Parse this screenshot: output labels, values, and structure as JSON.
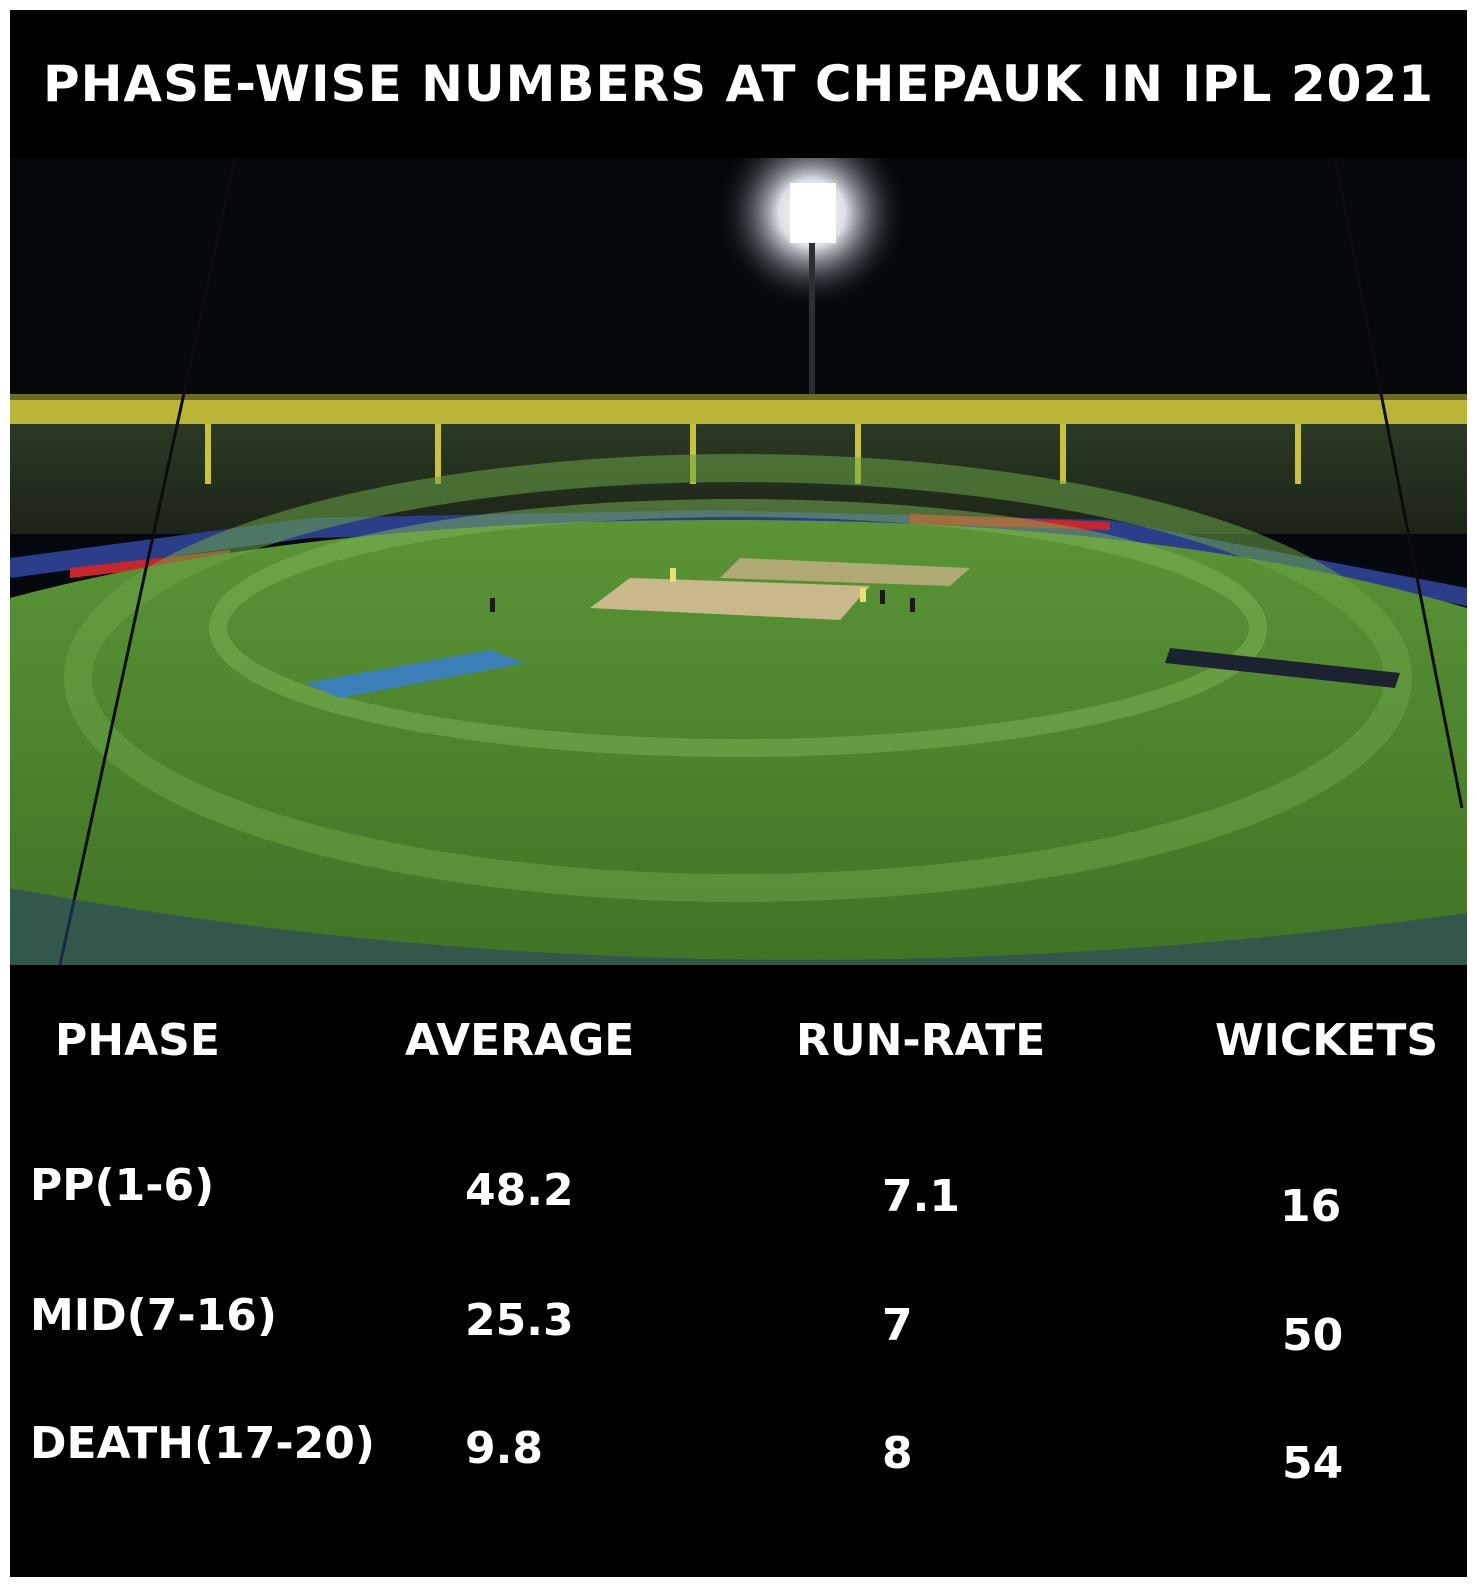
{
  "title": "PHASE-WISE NUMBERS AT CHEPAUK IN IPL 2021",
  "photo": {
    "scene": "night-stadium-photo"
  },
  "table": {
    "headers": [
      "PHASE",
      "AVERAGE",
      "RUN-RATE",
      "WICKETS"
    ],
    "rows": [
      {
        "phase": "PP(1-6)",
        "average": "48.2",
        "run_rate": "7.1",
        "wickets": "16"
      },
      {
        "phase": "MID(7-16)",
        "average": "25.3",
        "run_rate": "7",
        "wickets": "50"
      },
      {
        "phase": "DEATH(17-20)",
        "average": "9.8",
        "run_rate": "8",
        "wickets": "54"
      }
    ]
  },
  "colors": {
    "background": "#000000",
    "text": "#ffffff",
    "grass": "#4f8a2c",
    "sky": "#05080d"
  }
}
